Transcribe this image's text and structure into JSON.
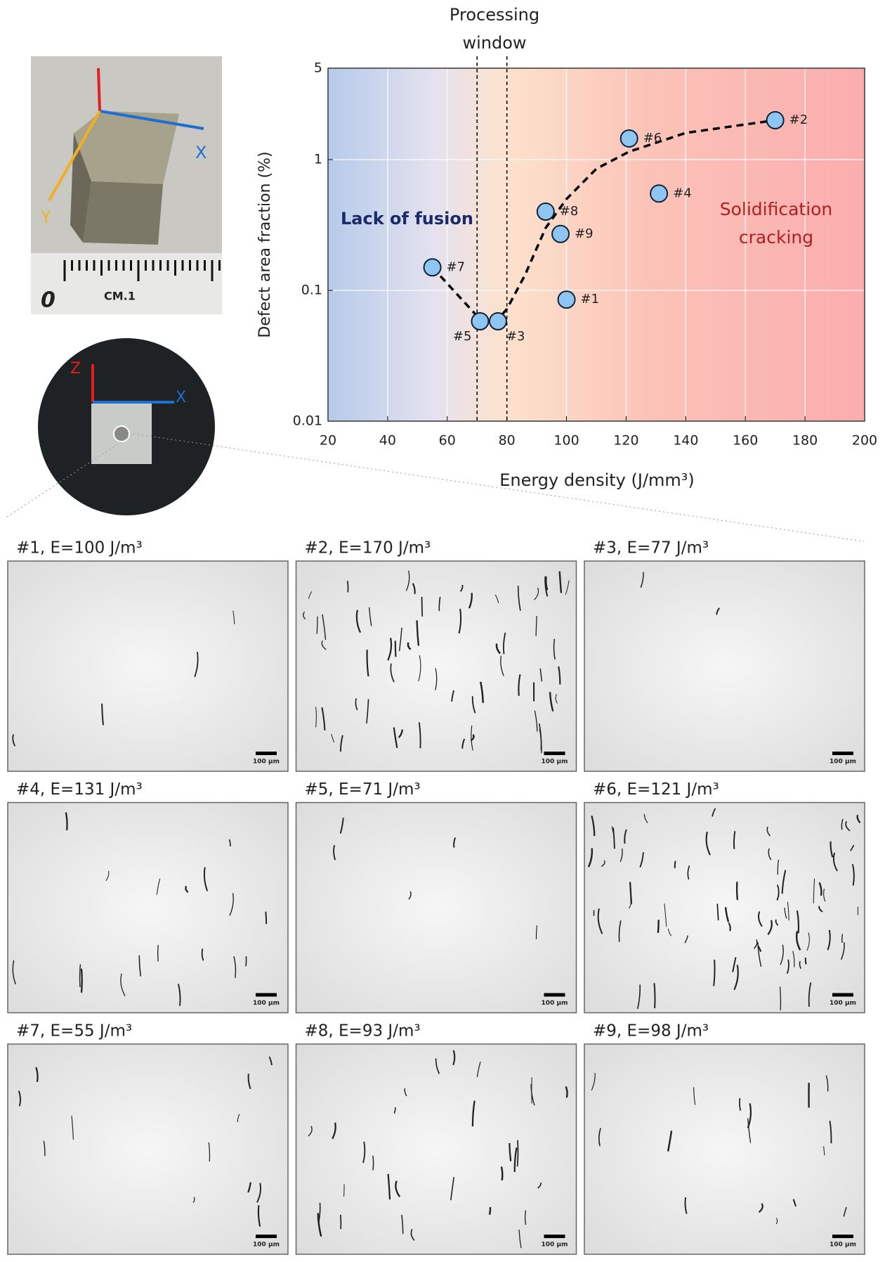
{
  "chart_data": {
    "type": "scatter",
    "title": [
      "Processing",
      "window"
    ],
    "x_label": "Energy density (J/mm³)",
    "y_label": "Defect area fraction (%)",
    "annotations": {
      "lack_of_fusion": "Lack of fusion",
      "cracking": [
        "Solidification",
        "cracking"
      ]
    },
    "labels": [
      "#1",
      "#2",
      "#3",
      "#4",
      "#5",
      "#6",
      "#7",
      "#8",
      "#9"
    ],
    "x": [
      100,
      170,
      77,
      131,
      71,
      121,
      55,
      93,
      98
    ],
    "values": [
      0.085,
      2.0,
      0.058,
      0.55,
      0.058,
      1.45,
      0.15,
      0.4,
      0.27
    ],
    "color": "#8ec5f2",
    "trend": {
      "x": [
        55,
        63,
        71,
        77,
        80,
        86,
        93,
        100,
        110,
        121,
        140,
        170
      ],
      "y": [
        0.15,
        0.095,
        0.06,
        0.06,
        0.072,
        0.13,
        0.3,
        0.5,
        0.85,
        1.15,
        1.6,
        2.0
      ]
    },
    "window": [
      70,
      80
    ],
    "xlim": [
      20,
      200
    ],
    "xticks": [
      20,
      40,
      60,
      80,
      100,
      120,
      140,
      160,
      180,
      200
    ],
    "ylim": [
      0.01,
      5
    ],
    "yticks": [
      0.01,
      0.1,
      1,
      5
    ],
    "log_y": true,
    "grid": true
  },
  "photos": {
    "cube": {
      "axes": [
        "X",
        "Y"
      ],
      "ruler": [
        "0",
        "CM.1"
      ]
    },
    "section": {
      "axes": [
        "Z",
        "X"
      ]
    }
  },
  "micrographs": {
    "scale_bar": "100 μm",
    "panels": [
      "#1, E=100 J/m³",
      "#2, E=170 J/m³",
      "#3, E=77 J/m³",
      "#4, E=131 J/m³",
      "#5, E=71 J/m³",
      "#6, E=121 J/m³",
      "#7, E=55 J/m³",
      "#8, E=93 J/m³",
      "#9, E=98 J/m³"
    ]
  }
}
